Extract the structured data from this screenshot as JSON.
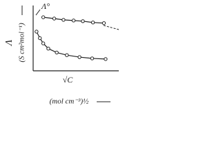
{
  "chart_data": {
    "type": "line",
    "annotation": "Λ°",
    "y_label": "Λ",
    "y_unit": "(S cm²mol⁻¹)",
    "x_label": "√C",
    "x_unit": "(mol cm⁻³)½",
    "xlim": [
      0,
      10
    ],
    "ylim": [
      0,
      10
    ],
    "series": [
      {
        "color": "#222222",
        "x": [
          1.2,
          2.5,
          3.6,
          4.8,
          5.9,
          7.1,
          8.4
        ],
        "values": [
          8.2,
          8.0,
          7.8,
          7.7,
          7.6,
          7.4,
          7.3
        ]
      },
      {
        "color": "#222222",
        "x": [
          0.4,
          0.8,
          1.2,
          1.8,
          2.8,
          4.0,
          5.5,
          7.0,
          8.6
        ],
        "values": [
          6.0,
          5.0,
          4.2,
          3.4,
          2.8,
          2.4,
          2.1,
          1.9,
          1.8
        ]
      }
    ]
  }
}
